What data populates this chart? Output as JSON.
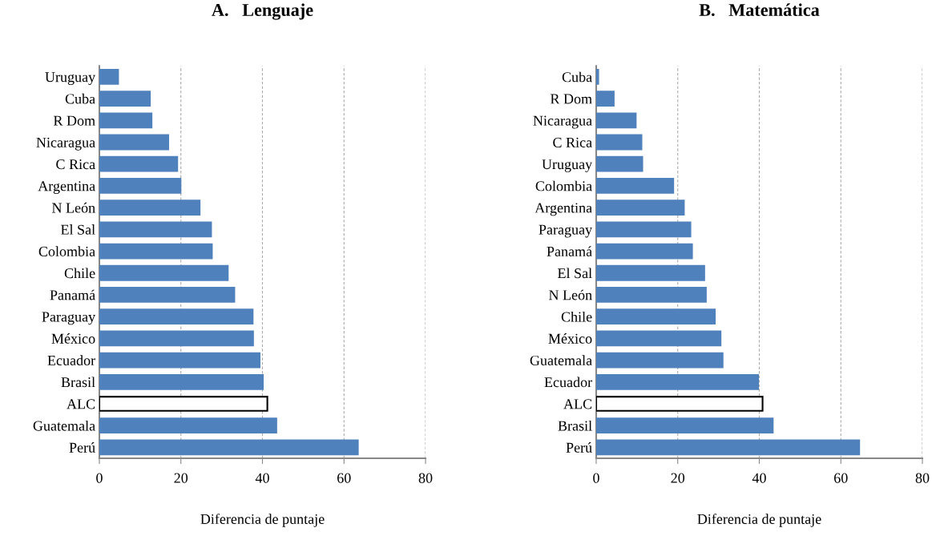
{
  "chart_data": [
    {
      "type": "bar",
      "orientation": "horizontal",
      "title": "A.   Lenguaje",
      "xlabel": "Diferencia de puntaje",
      "categories": [
        "Uruguay",
        "Cuba",
        "R Dom",
        "Nicaragua",
        "C Rica",
        "Argentina",
        "N León",
        "El Sal",
        "Colombia",
        "Chile",
        "Panamá",
        "Paraguay",
        "México",
        "Ecuador",
        "Brasil",
        "ALC",
        "Guatemala",
        "Perú"
      ],
      "values": [
        4.6,
        12.4,
        12.8,
        16.9,
        19.1,
        19.9,
        24.6,
        27.4,
        27.6,
        31.5,
        33.1,
        37.6,
        37.7,
        39.3,
        40.1,
        41.2,
        43.4,
        63.4
      ],
      "colors": [
        "#4f81bd",
        "#4f81bd",
        "#4f81bd",
        "#4f81bd",
        "#4f81bd",
        "#4f81bd",
        "#4f81bd",
        "#4f81bd",
        "#4f81bd",
        "#4f81bd",
        "#4f81bd",
        "#4f81bd",
        "#4f81bd",
        "#4f81bd",
        "#4f81bd",
        "#ffffff",
        "#4f81bd",
        "#4f81bd"
      ],
      "xlim": [
        0,
        80
      ],
      "xticks": [
        0,
        20,
        40,
        60,
        80
      ],
      "grid": "x"
    },
    {
      "type": "bar",
      "orientation": "horizontal",
      "title": "B.   Matemática",
      "xlabel": "Diferencia de puntaje",
      "categories": [
        "Cuba",
        "R Dom",
        "Nicaragua",
        "C Rica",
        "Uruguay",
        "Colombia",
        "Argentina",
        "Paraguay",
        "Panamá",
        "El Sal",
        "N León",
        "Chile",
        "México",
        "Guatemala",
        "Ecuador",
        "ALC",
        "Brasil",
        "Perú"
      ],
      "values": [
        0.5,
        4.3,
        9.7,
        11.1,
        11.3,
        18.9,
        21.5,
        23.1,
        23.5,
        26.5,
        26.9,
        29.1,
        30.5,
        31.0,
        39.7,
        40.8,
        43.3,
        64.5
      ],
      "colors": [
        "#4f81bd",
        "#4f81bd",
        "#4f81bd",
        "#4f81bd",
        "#4f81bd",
        "#4f81bd",
        "#4f81bd",
        "#4f81bd",
        "#4f81bd",
        "#4f81bd",
        "#4f81bd",
        "#4f81bd",
        "#4f81bd",
        "#4f81bd",
        "#4f81bd",
        "#ffffff",
        "#4f81bd",
        "#4f81bd"
      ],
      "xlim": [
        0,
        80
      ],
      "xticks": [
        0,
        20,
        40,
        60,
        80
      ],
      "grid": "x"
    }
  ]
}
